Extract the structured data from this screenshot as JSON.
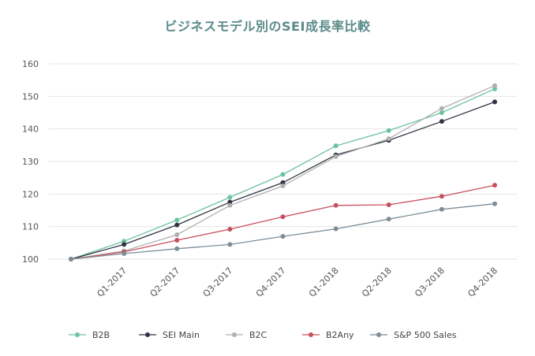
{
  "chart_data": {
    "type": "line",
    "title": "ビジネスモデル別のSEI成長率比較",
    "xlabel": "",
    "ylabel": "",
    "x": [
      "",
      "Q1-2017",
      "Q2-2017",
      "Q3-2017",
      "Q4-2017",
      "Q1-2018",
      "Q2-2018",
      "Q3-2018",
      "Q4-2018"
    ],
    "ylim": [
      100,
      160
    ],
    "yticks": [
      100,
      110,
      120,
      130,
      140,
      150,
      160
    ],
    "grid": true,
    "legend_position": "bottom",
    "series": [
      {
        "name": "B2B",
        "color": "#6cc3a0",
        "values": [
          100,
          105.5,
          112,
          119,
          126,
          134.8,
          139.5,
          145,
          152.3
        ]
      },
      {
        "name": "SEI Main",
        "color": "#2f3444",
        "values": [
          100,
          104.5,
          110.5,
          117.5,
          123.5,
          132,
          136.5,
          142.3,
          148.3
        ]
      },
      {
        "name": "B2C",
        "color": "#b0b0b0",
        "values": [
          100,
          102.5,
          107.5,
          116.5,
          122.5,
          131.5,
          137,
          146.3,
          153.3
        ]
      },
      {
        "name": "B2Any",
        "color": "#c8505e",
        "values": [
          100,
          102.2,
          105.8,
          109.2,
          113,
          116.5,
          116.7,
          119.3,
          122.7
        ]
      },
      {
        "name": "S&P 500 Sales",
        "color": "#7c8f98",
        "values": [
          100,
          101.7,
          103.2,
          104.5,
          107,
          109.3,
          112.3,
          115.3,
          117
        ]
      }
    ]
  }
}
